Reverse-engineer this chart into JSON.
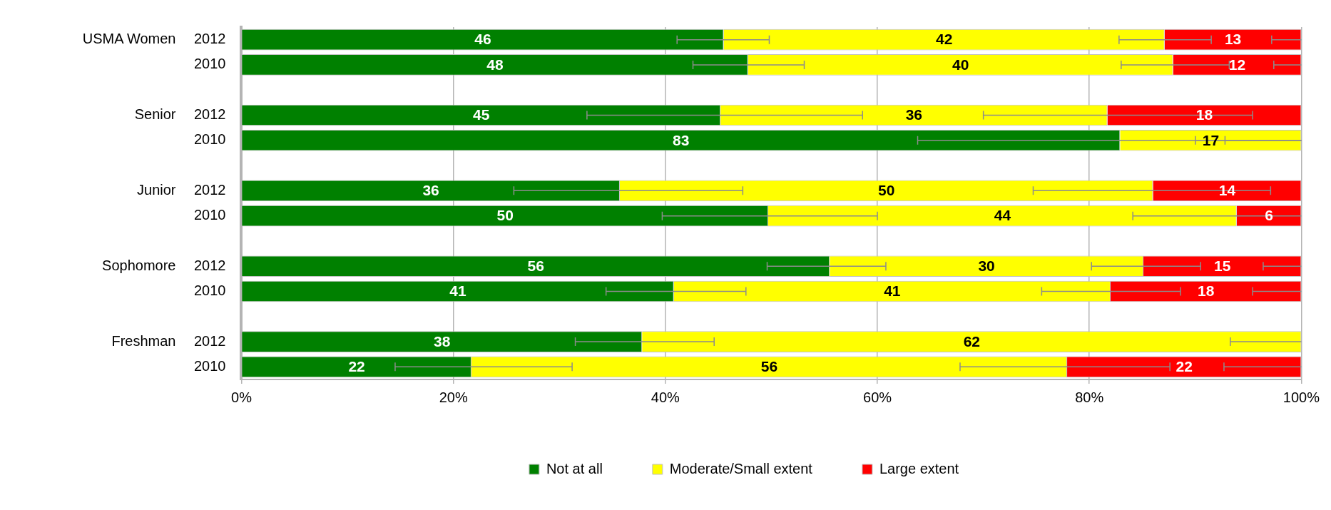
{
  "chart_data": {
    "type": "bar",
    "orientation": "horizontal",
    "stacked": true,
    "categories": [
      "2012",
      "2010",
      null,
      "2012",
      "2010",
      null,
      "2012",
      "2010",
      null,
      "2012",
      "2010",
      null,
      "2012",
      "2010"
    ],
    "annotations": [
      "USMA Women",
      "Senior",
      "Junior",
      "Sophomore",
      "Freshman"
    ],
    "series": [
      {
        "name": "Not at all",
        "color": "#008000",
        "values": [
          45.5,
          47.8,
          null,
          45.2,
          82.9,
          null,
          35.7,
          49.7,
          null,
          55.5,
          40.8,
          null,
          37.8,
          21.7
        ],
        "value_labels": [
          "46",
          "48",
          null,
          "45",
          "83",
          null,
          "36",
          "50",
          null,
          "56",
          "41",
          null,
          "38",
          "22"
        ],
        "errors": [
          [
            41.1,
            49.8
          ],
          [
            42.6,
            53.1
          ],
          null,
          [
            32.6,
            58.6
          ],
          [
            63.8,
            100
          ],
          null,
          [
            25.7,
            47.3
          ],
          [
            39.7,
            60.0
          ],
          null,
          [
            49.6,
            60.8
          ],
          [
            34.4,
            47.6
          ],
          null,
          [
            31.5,
            44.6
          ],
          [
            14.5,
            31.2
          ]
        ]
      },
      {
        "name": "Moderate/Small extent",
        "color": "#ffff00",
        "values": [
          41.6,
          40.1,
          null,
          36.5,
          17.1,
          null,
          50.3,
          44.2,
          null,
          29.6,
          41.2,
          null,
          62.2,
          56.2
        ],
        "value_labels": [
          "42",
          "40",
          null,
          "36",
          "17",
          null,
          "50",
          "44",
          null,
          "30",
          "41",
          null,
          "62",
          "56"
        ],
        "errors": [
          [
            82.8,
            91.5
          ],
          [
            83.0,
            93.2
          ],
          null,
          [
            70.0,
            95.4
          ],
          [
            90.0,
            100
          ],
          null,
          [
            74.7,
            97.1
          ],
          [
            84.1,
            100
          ],
          null,
          [
            80.2,
            90.5
          ],
          [
            75.5,
            88.6
          ],
          null,
          [
            93.3,
            100
          ],
          [
            67.8,
            87.6
          ]
        ]
      },
      {
        "name": "Large extent",
        "color": "#ff0000",
        "values": [
          12.9,
          12.1,
          null,
          18.3,
          0,
          null,
          14.0,
          6.1,
          null,
          14.9,
          18.0,
          null,
          0,
          22.1
        ],
        "value_labels": [
          "13",
          "12",
          null,
          "18",
          null,
          null,
          "14",
          "6",
          null,
          "15",
          "18",
          null,
          null,
          "22"
        ],
        "errors": [
          [
            97.2,
            100
          ],
          [
            97.4,
            100
          ],
          null,
          null,
          [
            92.8,
            100
          ],
          null,
          null,
          null,
          null,
          [
            96.4,
            100
          ],
          [
            95.4,
            100
          ],
          null,
          null,
          [
            92.7,
            100
          ]
        ]
      }
    ],
    "xlim": [
      0,
      100
    ],
    "xticks": [
      {
        "value": 0,
        "label": "0%"
      },
      {
        "value": 20,
        "label": "20%"
      },
      {
        "value": 40,
        "label": "40%"
      },
      {
        "value": 60,
        "label": "60%"
      },
      {
        "value": 80,
        "label": "80%"
      },
      {
        "value": 100,
        "label": "100%"
      }
    ],
    "grid": "x",
    "legend": "bottom"
  }
}
